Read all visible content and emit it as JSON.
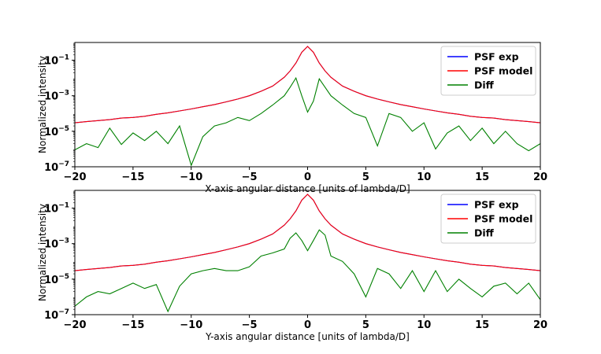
{
  "chart_data": [
    {
      "type": "line",
      "xlabel": "X-axis angular distance [units of lambda/D]",
      "ylabel": "Normalized intensity",
      "xlim": [
        -20,
        20
      ],
      "ylim": [
        1e-07,
        1
      ],
      "yscale": "log",
      "xticks": [
        -20,
        -15,
        -10,
        -5,
        0,
        5,
        10,
        15,
        20
      ],
      "xtick_labels": [
        "−20",
        "−15",
        "−10",
        "−5",
        "0",
        "5",
        "10",
        "15",
        "20"
      ],
      "yticks": [
        1e-07,
        1e-05,
        0.001,
        0.1
      ],
      "ytick_labels": [
        {
          "base": "10",
          "exp": "−7"
        },
        {
          "base": "10",
          "exp": "−5"
        },
        {
          "base": "10",
          "exp": "−3"
        },
        {
          "base": "10",
          "exp": "−1"
        }
      ],
      "legend": "top-right",
      "grid": false,
      "x": [
        -20,
        -19,
        -18,
        -17,
        -16,
        -15,
        -14,
        -13,
        -12,
        -11,
        -10,
        -9,
        -8,
        -7,
        -6,
        -5,
        -4,
        -3,
        -2,
        -1.5,
        -1,
        -0.5,
        0,
        0.5,
        1,
        1.5,
        2,
        3,
        4,
        5,
        6,
        7,
        8,
        9,
        10,
        11,
        12,
        13,
        14,
        15,
        16,
        17,
        18,
        19,
        20
      ],
      "series": [
        {
          "name": "PSF exp",
          "color": "#0000ff",
          "values": [
            3e-05,
            3.5e-05,
            4e-05,
            4.5e-05,
            5.5e-05,
            6e-05,
            7e-05,
            9e-05,
            0.00011,
            0.00014,
            0.00018,
            0.00024,
            0.00032,
            0.00045,
            0.00065,
            0.001,
            0.0018,
            0.0035,
            0.011,
            0.025,
            0.07,
            0.28,
            0.6,
            0.28,
            0.07,
            0.025,
            0.011,
            0.0035,
            0.0018,
            0.001,
            0.00065,
            0.00045,
            0.00032,
            0.00024,
            0.00018,
            0.00014,
            0.00011,
            9e-05,
            7e-05,
            6e-05,
            5.5e-05,
            4.5e-05,
            4e-05,
            3.5e-05,
            3e-05
          ]
        },
        {
          "name": "PSF model",
          "color": "#ff0000",
          "values": [
            3e-05,
            3.5e-05,
            4e-05,
            4.5e-05,
            5.5e-05,
            6e-05,
            7e-05,
            9e-05,
            0.00011,
            0.00014,
            0.00018,
            0.00024,
            0.00032,
            0.00045,
            0.00065,
            0.001,
            0.0018,
            0.0035,
            0.011,
            0.025,
            0.07,
            0.28,
            0.6,
            0.28,
            0.07,
            0.025,
            0.011,
            0.0035,
            0.0018,
            0.001,
            0.00065,
            0.00045,
            0.00032,
            0.00024,
            0.00018,
            0.00014,
            0.00011,
            9e-05,
            7e-05,
            6e-05,
            5.5e-05,
            4.5e-05,
            4e-05,
            3.5e-05,
            3e-05
          ]
        },
        {
          "name": "Diff",
          "color": "#008000",
          "values": [
            9e-07,
            2e-06,
            1.2e-06,
            1.5e-05,
            1.8e-06,
            8e-06,
            3e-06,
            1e-05,
            2e-06,
            2e-05,
            1.2e-07,
            5e-06,
            2e-05,
            3e-05,
            6e-05,
            4e-05,
            0.0001,
            0.0003,
            0.001,
            0.003,
            0.01,
            0.001,
            0.00012,
            0.0005,
            0.009,
            0.003,
            0.001,
            0.0003,
            0.0001,
            6e-05,
            1.5e-06,
            0.0001,
            6e-05,
            1e-05,
            3e-05,
            1e-06,
            8e-06,
            2e-05,
            3e-06,
            1.5e-05,
            2e-06,
            1e-05,
            2e-06,
            8e-07,
            2e-06
          ]
        }
      ]
    },
    {
      "type": "line",
      "xlabel": "Y-axis angular distance [units of lambda/D]",
      "ylabel": "Normalized intensity",
      "xlim": [
        -20,
        20
      ],
      "ylim": [
        1e-07,
        1
      ],
      "yscale": "log",
      "xticks": [
        -20,
        -15,
        -10,
        -5,
        0,
        5,
        10,
        15,
        20
      ],
      "xtick_labels": [
        "−20",
        "−15",
        "−10",
        "−5",
        "0",
        "5",
        "10",
        "15",
        "20"
      ],
      "yticks": [
        1e-07,
        1e-05,
        0.001,
        0.1
      ],
      "ytick_labels": [
        {
          "base": "10",
          "exp": "−7"
        },
        {
          "base": "10",
          "exp": "−5"
        },
        {
          "base": "10",
          "exp": "−3"
        },
        {
          "base": "10",
          "exp": "−1"
        }
      ],
      "legend": "top-right",
      "grid": false,
      "x": [
        -20,
        -19,
        -18,
        -17,
        -16,
        -15,
        -14,
        -13,
        -12,
        -11,
        -10,
        -9,
        -8,
        -7,
        -6,
        -5,
        -4,
        -3,
        -2,
        -1.5,
        -1,
        -0.5,
        0,
        0.5,
        1,
        1.5,
        2,
        3,
        4,
        5,
        6,
        7,
        8,
        9,
        10,
        11,
        12,
        13,
        14,
        15,
        16,
        17,
        18,
        19,
        20
      ],
      "series": [
        {
          "name": "PSF exp",
          "color": "#0000ff",
          "values": [
            3e-05,
            3.5e-05,
            4e-05,
            4.5e-05,
            5.5e-05,
            6e-05,
            7e-05,
            9e-05,
            0.00011,
            0.00014,
            0.00018,
            0.00024,
            0.00032,
            0.00045,
            0.00065,
            0.001,
            0.0018,
            0.0035,
            0.011,
            0.025,
            0.07,
            0.28,
            0.6,
            0.28,
            0.07,
            0.025,
            0.011,
            0.0035,
            0.0018,
            0.001,
            0.00065,
            0.00045,
            0.00032,
            0.00024,
            0.00018,
            0.00014,
            0.00011,
            9e-05,
            7e-05,
            6e-05,
            5.5e-05,
            4.5e-05,
            4e-05,
            3.5e-05,
            3e-05
          ]
        },
        {
          "name": "PSF model",
          "color": "#ff0000",
          "values": [
            3e-05,
            3.5e-05,
            4e-05,
            4.5e-05,
            5.5e-05,
            6e-05,
            7e-05,
            9e-05,
            0.00011,
            0.00014,
            0.00018,
            0.00024,
            0.00032,
            0.00045,
            0.00065,
            0.001,
            0.0018,
            0.0035,
            0.011,
            0.025,
            0.07,
            0.28,
            0.6,
            0.28,
            0.07,
            0.025,
            0.011,
            0.0035,
            0.0018,
            0.001,
            0.00065,
            0.00045,
            0.00032,
            0.00024,
            0.00018,
            0.00014,
            0.00011,
            9e-05,
            7e-05,
            6e-05,
            5.5e-05,
            4.5e-05,
            4e-05,
            3.5e-05,
            3e-05
          ]
        },
        {
          "name": "Diff",
          "color": "#008000",
          "values": [
            3e-07,
            1e-06,
            2e-06,
            1.5e-06,
            3e-06,
            6e-06,
            3e-06,
            5e-06,
            1.5e-07,
            4e-06,
            2e-05,
            3e-05,
            4e-05,
            3e-05,
            3e-05,
            5e-05,
            0.0002,
            0.0003,
            0.0005,
            0.002,
            0.004,
            0.0015,
            0.0004,
            0.0015,
            0.006,
            0.003,
            0.0002,
            0.0001,
            2e-05,
            1e-06,
            4e-05,
            2e-05,
            3e-06,
            3e-05,
            2e-06,
            3e-05,
            2e-06,
            1e-05,
            3e-06,
            1e-06,
            4e-06,
            6e-06,
            1.5e-06,
            6e-06,
            7e-07
          ]
        }
      ]
    }
  ]
}
